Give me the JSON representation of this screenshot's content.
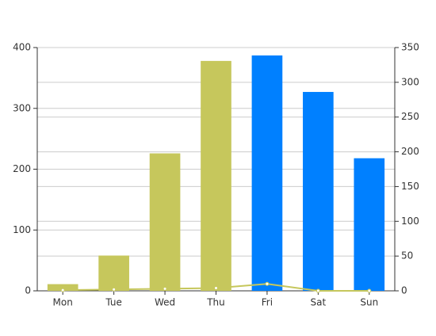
{
  "chart_data": {
    "type": "bar",
    "categories": [
      "Mon",
      "Tue",
      "Wed",
      "Thu",
      "Fri",
      "Sat",
      "Sun"
    ],
    "series": [
      {
        "type": "bar",
        "values": [
          11,
          58,
          226,
          378,
          387,
          327,
          218
        ],
        "colors": [
          "#c6c75c",
          "#c6c75c",
          "#c6c75c",
          "#c6c75c",
          "#0080ff",
          "#0080ff",
          "#0080ff"
        ]
      },
      {
        "type": "line",
        "axis": "y2",
        "values": [
          1,
          2,
          3,
          4,
          10,
          0,
          0
        ],
        "color": "#c6c75c"
      }
    ],
    "ylim": [
      0,
      400
    ],
    "yticks": [
      0,
      100,
      200,
      300,
      400
    ],
    "y2lim": [
      0,
      350
    ],
    "y2ticks": [
      0,
      50,
      100,
      150,
      200,
      250,
      300,
      350
    ],
    "grid": true
  }
}
